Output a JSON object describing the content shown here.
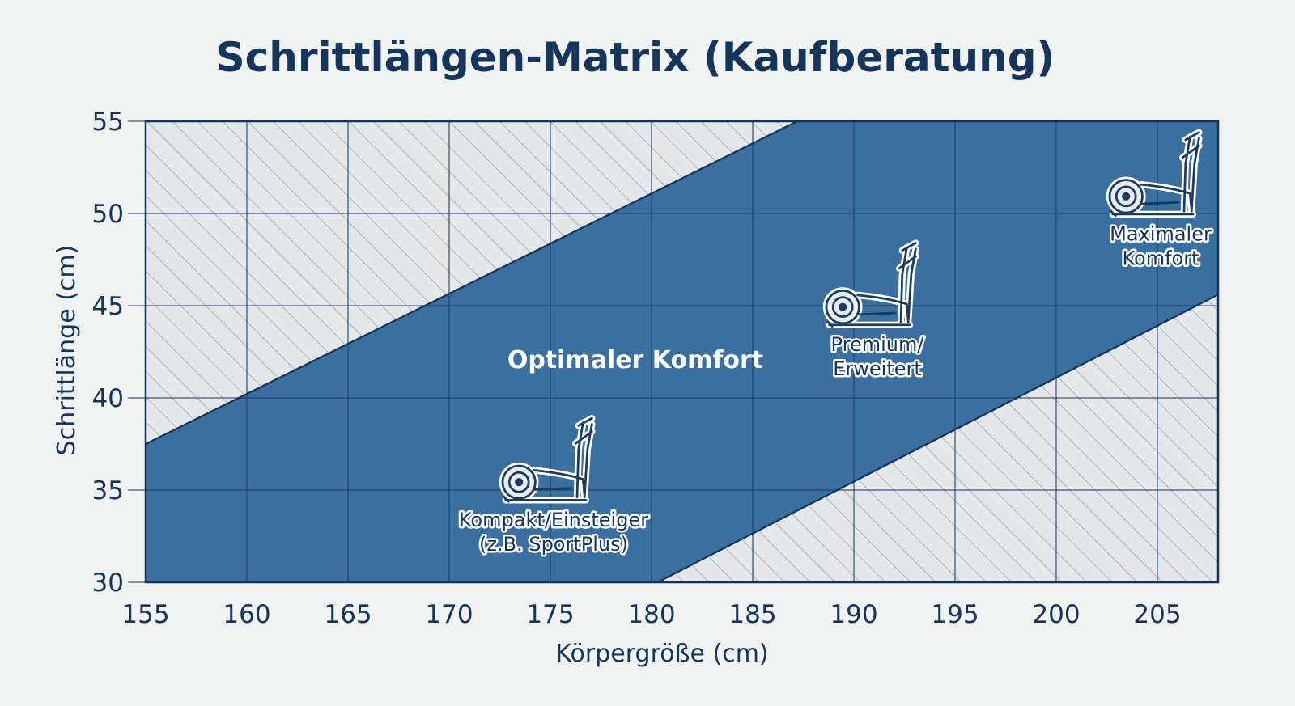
{
  "chart_data": {
    "type": "area",
    "title": "Schrittlängen-Matrix (Kaufberatung)",
    "xlabel": "Körpergröße (cm)",
    "ylabel": "Schrittlänge (cm)",
    "xlim": [
      155,
      208
    ],
    "ylim": [
      30,
      55
    ],
    "x_ticks": [
      155,
      160,
      165,
      170,
      175,
      180,
      185,
      190,
      195,
      200,
      205
    ],
    "y_ticks": [
      30,
      35,
      40,
      45,
      50,
      55
    ],
    "grid": true,
    "band": {
      "label": "Optimaler Komfort",
      "upper": [
        {
          "x": 155,
          "y": 37.5
        },
        {
          "x": 187.2,
          "y": 55
        }
      ],
      "lower": [
        {
          "x": 180.3,
          "y": 30
        },
        {
          "x": 208,
          "y": 45.6
        }
      ]
    },
    "models": [
      {
        "label": [
          "Kompakt/Einsteiger",
          "(z.B. SportPlus)"
        ],
        "x": 175,
        "y": 34,
        "icon": "elliptical-trainer-icon"
      },
      {
        "label": [
          "Premium/",
          "Erweitert"
        ],
        "x": 191,
        "y": 43.5,
        "icon": "elliptical-trainer-icon"
      },
      {
        "label": [
          "Maximaler",
          "Komfort"
        ],
        "x": 205,
        "y": 49.5,
        "icon": "elliptical-trainer-icon"
      }
    ],
    "colors": {
      "band": "#3a6fa0",
      "hatch_bg": "#e6e7e8",
      "hatch_line": "#9aa3ad",
      "grid": "#1c3f66",
      "text": "#15355a"
    }
  }
}
